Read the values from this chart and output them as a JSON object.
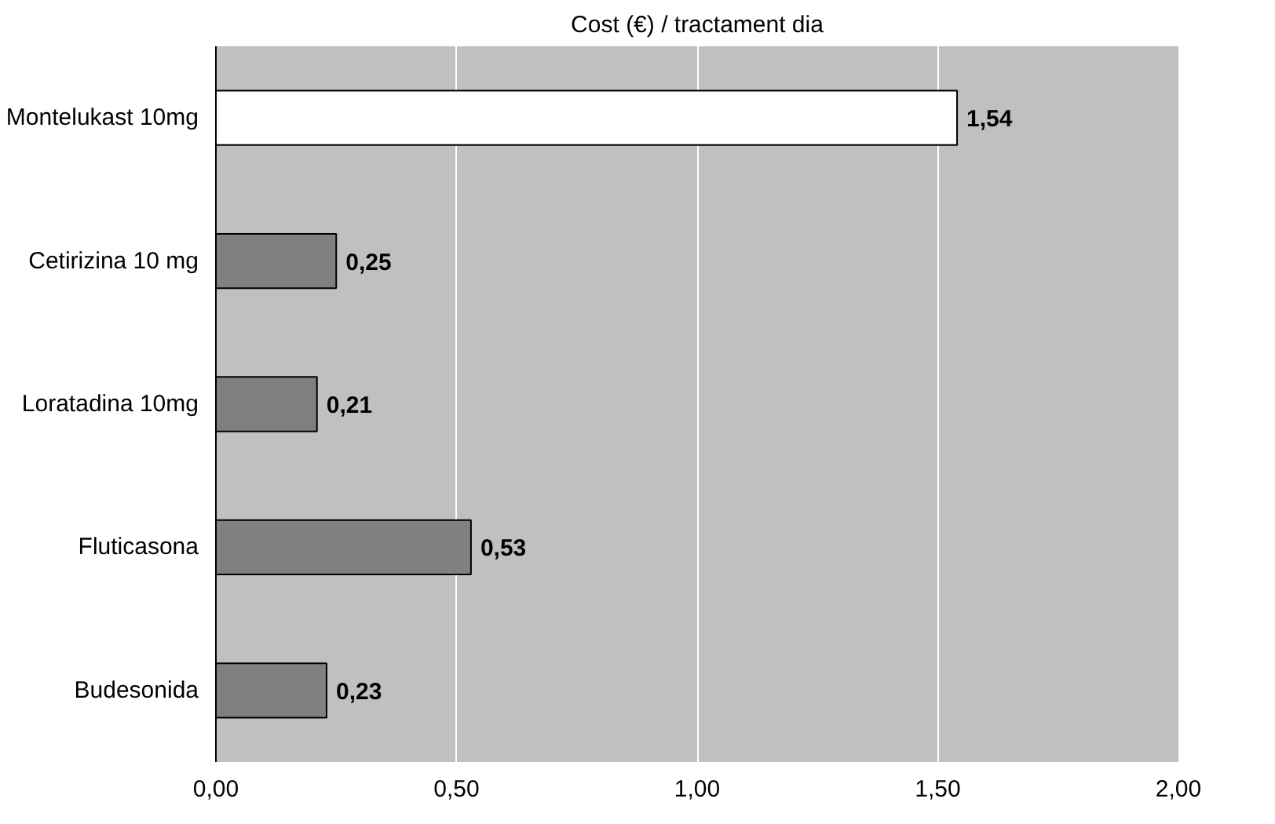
{
  "chart_data": {
    "type": "bar",
    "orientation": "horizontal",
    "title": "Cost (€) / tractament dia",
    "categories": [
      "Montelukast 10mg",
      "Cetirizina 10 mg",
      "Loratadina 10mg",
      "Fluticasona",
      "Budesonida"
    ],
    "values": [
      1.54,
      0.25,
      0.21,
      0.53,
      0.23
    ],
    "colors": [
      "#ffffff",
      "#808080",
      "#808080",
      "#808080",
      "#808080"
    ],
    "value_labels": [
      "1,54",
      "0,25",
      "0,21",
      "0,53",
      "0,23"
    ],
    "xlim": [
      0,
      2
    ],
    "xticks": [
      {
        "value": 0,
        "label": "0,00"
      },
      {
        "value": 0.5,
        "label": "0,50"
      },
      {
        "value": 1,
        "label": "1,00"
      },
      {
        "value": 1.5,
        "label": "1,50"
      },
      {
        "value": 2,
        "label": "2,00"
      }
    ],
    "grid": "x"
  }
}
